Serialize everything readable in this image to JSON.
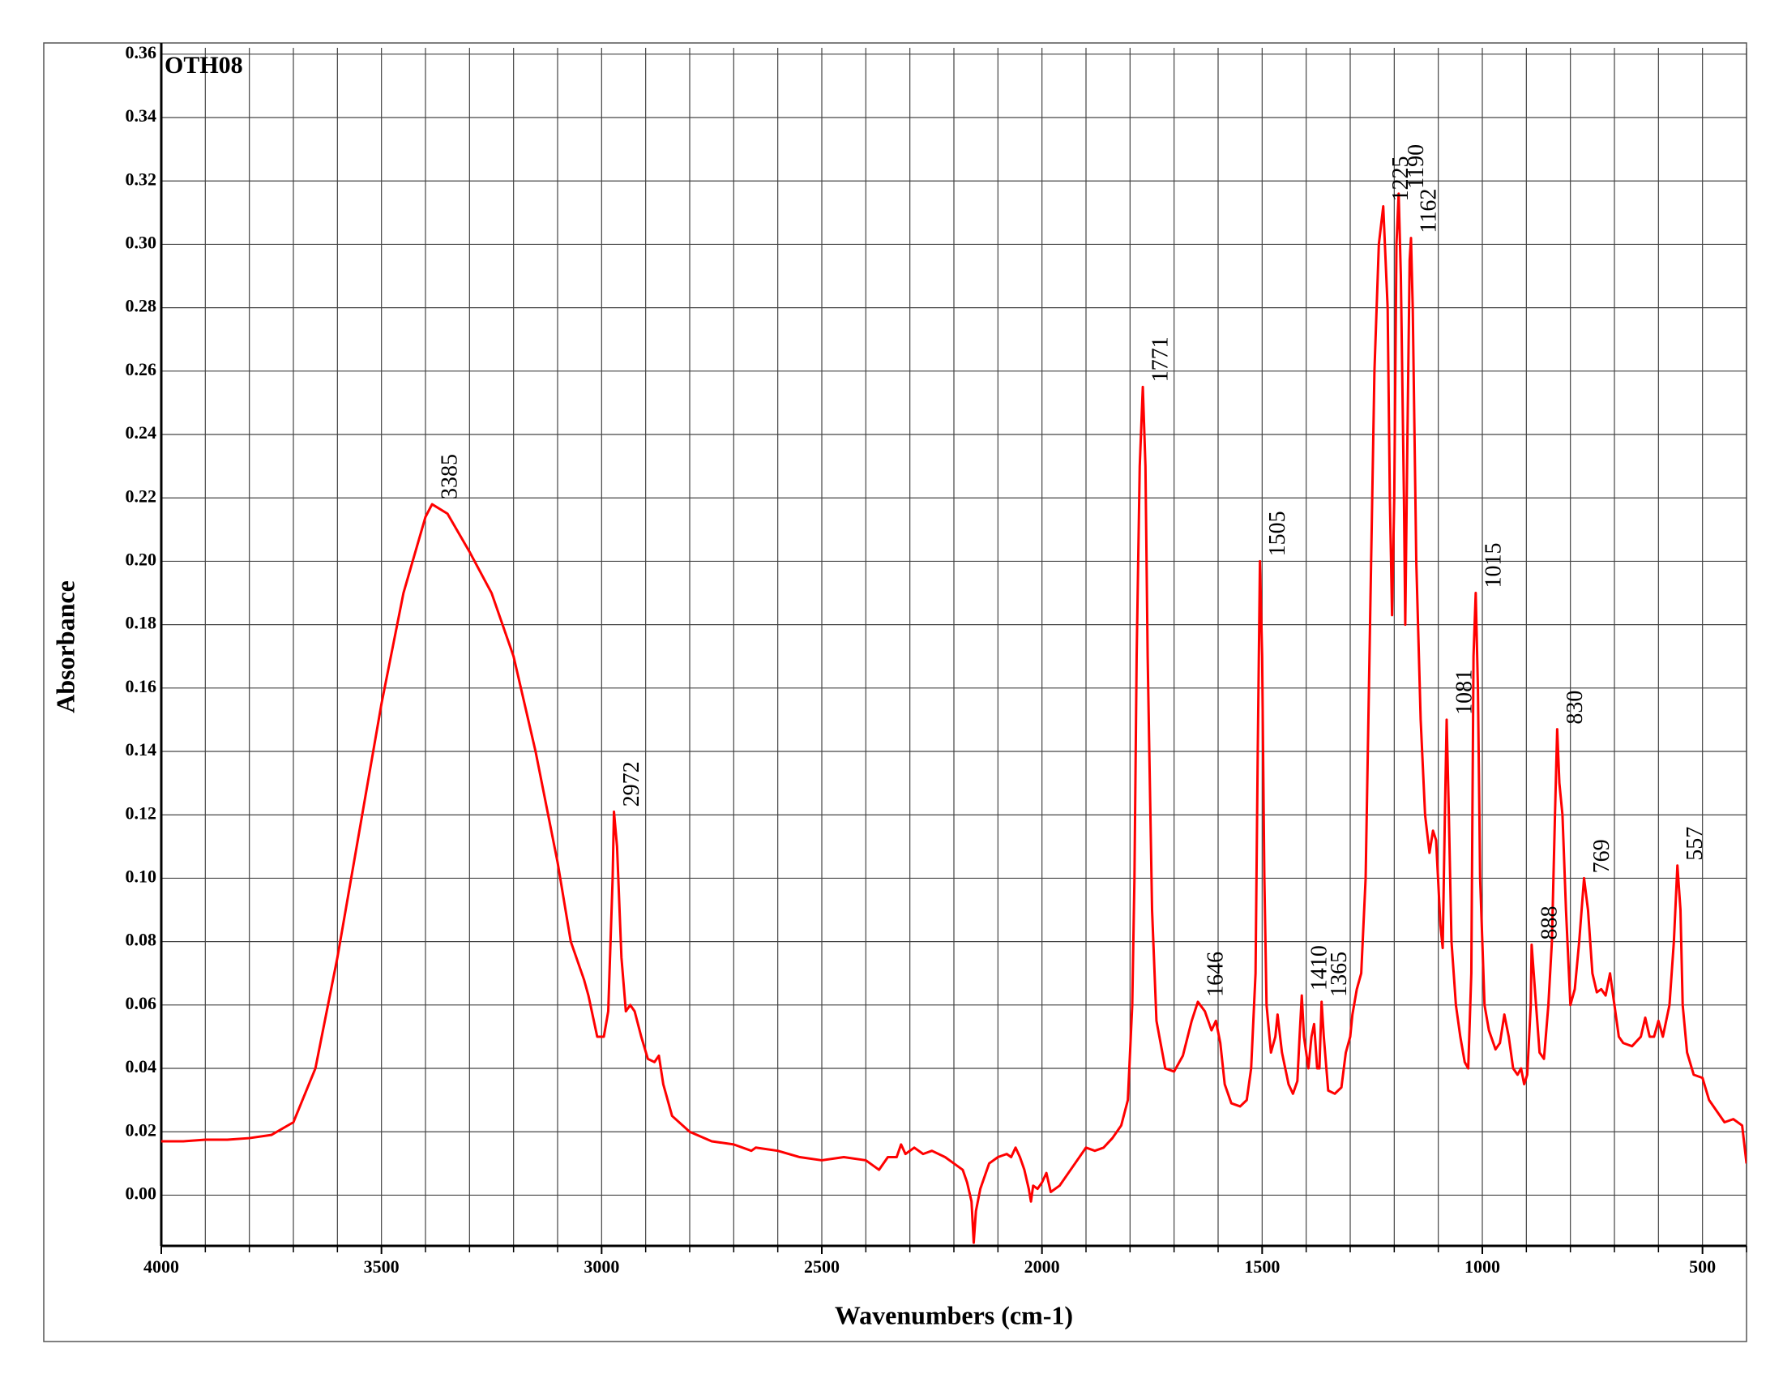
{
  "chart_data": {
    "type": "line",
    "xlabel": "Wavenumbers (cm-1)",
    "ylabel": "Absorbance",
    "xlim": [
      4000,
      400
    ],
    "ylim": [
      -0.016,
      0.362
    ],
    "xticks": [
      4000,
      3500,
      3000,
      2500,
      2000,
      1500,
      1000,
      500
    ],
    "xgrid_step": 100,
    "yticks": [
      {
        "value": 0,
        "label": "0.00"
      },
      0.02,
      0.04,
      0.06,
      0.08,
      {
        "value": 0.1,
        "label": "0.10"
      },
      0.12,
      0.14,
      0.16,
      0.18,
      {
        "value": 0.2,
        "label": "0.20"
      },
      0.22,
      0.24,
      0.26,
      0.28,
      {
        "value": 0.3,
        "label": "0.30"
      },
      0.32,
      0.34,
      0.36
    ],
    "grid": true,
    "legend": "top-left",
    "x": [
      4000,
      3950,
      3900,
      3850,
      3800,
      3750,
      3700,
      3650,
      3600,
      3550,
      3500,
      3450,
      3400,
      3385,
      3350,
      3300,
      3250,
      3200,
      3150,
      3100,
      3070,
      3040,
      3030,
      3010,
      2995,
      2985,
      2975,
      2972,
      2965,
      2955,
      2945,
      2935,
      2925,
      2910,
      2895,
      2880,
      2870,
      2860,
      2840,
      2800,
      2750,
      2700,
      2660,
      2650,
      2600,
      2550,
      2500,
      2450,
      2400,
      2370,
      2350,
      2330,
      2320,
      2310,
      2290,
      2270,
      2250,
      2220,
      2200,
      2180,
      2170,
      2160,
      2155,
      2150,
      2140,
      2120,
      2100,
      2080,
      2070,
      2060,
      2050,
      2040,
      2030,
      2025,
      2020,
      2010,
      2000,
      1990,
      1980,
      1960,
      1940,
      1920,
      1900,
      1880,
      1860,
      1840,
      1820,
      1805,
      1795,
      1790,
      1785,
      1778,
      1771,
      1765,
      1760,
      1750,
      1740,
      1720,
      1700,
      1680,
      1660,
      1646,
      1630,
      1615,
      1605,
      1595,
      1585,
      1570,
      1550,
      1535,
      1525,
      1515,
      1510,
      1505,
      1500,
      1495,
      1490,
      1480,
      1470,
      1465,
      1455,
      1440,
      1430,
      1420,
      1415,
      1410,
      1405,
      1395,
      1388,
      1382,
      1375,
      1370,
      1365,
      1360,
      1350,
      1335,
      1320,
      1310,
      1300,
      1295,
      1285,
      1275,
      1265,
      1255,
      1245,
      1235,
      1225,
      1215,
      1210,
      1205,
      1200,
      1195,
      1190,
      1185,
      1178,
      1175,
      1170,
      1165,
      1162,
      1158,
      1150,
      1140,
      1130,
      1120,
      1112,
      1105,
      1095,
      1090,
      1085,
      1081,
      1076,
      1070,
      1060,
      1050,
      1040,
      1032,
      1025,
      1020,
      1015,
      1010,
      1005,
      995,
      985,
      970,
      960,
      950,
      940,
      930,
      920,
      912,
      905,
      898,
      890,
      888,
      878,
      870,
      860,
      850,
      842,
      835,
      830,
      825,
      818,
      810,
      800,
      790,
      780,
      769,
      760,
      750,
      740,
      730,
      720,
      710,
      700,
      690,
      680,
      660,
      640,
      630,
      620,
      610,
      600,
      590,
      575,
      565,
      557,
      550,
      545,
      535,
      520,
      500,
      485,
      470,
      450,
      430,
      410,
      405,
      400
    ],
    "series": [
      {
        "name": "OTH08",
        "color": "#ff0000",
        "values": [
          0.017,
          0.017,
          0.0175,
          0.0175,
          0.018,
          0.019,
          0.023,
          0.04,
          0.075,
          0.115,
          0.155,
          0.19,
          0.214,
          0.218,
          0.215,
          0.203,
          0.19,
          0.17,
          0.14,
          0.105,
          0.08,
          0.068,
          0.063,
          0.05,
          0.05,
          0.058,
          0.1,
          0.121,
          0.11,
          0.075,
          0.058,
          0.06,
          0.058,
          0.05,
          0.043,
          0.042,
          0.044,
          0.035,
          0.025,
          0.02,
          0.017,
          0.016,
          0.014,
          0.015,
          0.014,
          0.012,
          0.011,
          0.012,
          0.011,
          0.008,
          0.012,
          0.012,
          0.016,
          0.013,
          0.015,
          0.013,
          0.014,
          0.012,
          0.01,
          0.008,
          0.004,
          -0.002,
          -0.015,
          -0.005,
          0.002,
          0.01,
          0.012,
          0.013,
          0.012,
          0.015,
          0.012,
          0.008,
          0.002,
          -0.002,
          0.003,
          0.002,
          0.004,
          0.007,
          0.001,
          0.003,
          0.007,
          0.011,
          0.015,
          0.014,
          0.015,
          0.018,
          0.022,
          0.03,
          0.06,
          0.1,
          0.17,
          0.23,
          0.255,
          0.23,
          0.17,
          0.09,
          0.055,
          0.04,
          0.039,
          0.044,
          0.055,
          0.061,
          0.058,
          0.052,
          0.055,
          0.048,
          0.035,
          0.029,
          0.028,
          0.03,
          0.04,
          0.07,
          0.14,
          0.2,
          0.17,
          0.1,
          0.06,
          0.045,
          0.05,
          0.057,
          0.045,
          0.035,
          0.032,
          0.036,
          0.05,
          0.063,
          0.05,
          0.04,
          0.05,
          0.054,
          0.04,
          0.04,
          0.061,
          0.05,
          0.033,
          0.032,
          0.034,
          0.045,
          0.05,
          0.057,
          0.065,
          0.07,
          0.1,
          0.18,
          0.26,
          0.3,
          0.312,
          0.28,
          0.22,
          0.183,
          0.22,
          0.3,
          0.316,
          0.29,
          0.22,
          0.18,
          0.24,
          0.295,
          0.302,
          0.28,
          0.2,
          0.15,
          0.12,
          0.108,
          0.115,
          0.112,
          0.085,
          0.078,
          0.12,
          0.15,
          0.12,
          0.08,
          0.06,
          0.05,
          0.042,
          0.04,
          0.07,
          0.17,
          0.19,
          0.16,
          0.1,
          0.06,
          0.052,
          0.046,
          0.048,
          0.057,
          0.05,
          0.04,
          0.038,
          0.04,
          0.035,
          0.038,
          0.06,
          0.079,
          0.06,
          0.045,
          0.043,
          0.06,
          0.08,
          0.12,
          0.147,
          0.13,
          0.12,
          0.09,
          0.06,
          0.065,
          0.08,
          0.1,
          0.09,
          0.07,
          0.064,
          0.065,
          0.063,
          0.07,
          0.06,
          0.05,
          0.048,
          0.047,
          0.05,
          0.056,
          0.05,
          0.05,
          0.055,
          0.05,
          0.06,
          0.08,
          0.104,
          0.09,
          0.06,
          0.045,
          0.038,
          0.037,
          0.03,
          0.027,
          0.023,
          0.024,
          0.022,
          0.016,
          0.01
        ]
      }
    ],
    "annotations": [
      {
        "text": "3385",
        "x": 3385,
        "y": 0.218
      },
      {
        "text": "2972",
        "x": 2972,
        "y": 0.121
      },
      {
        "text": "1771",
        "x": 1771,
        "y": 0.255
      },
      {
        "text": "1646",
        "x": 1646,
        "y": 0.061
      },
      {
        "text": "1505",
        "x": 1505,
        "y": 0.2
      },
      {
        "text": "1410",
        "x": 1410,
        "y": 0.063
      },
      {
        "text": "1365",
        "x": 1365,
        "y": 0.061
      },
      {
        "text": "1225",
        "x": 1225,
        "y": 0.312
      },
      {
        "text": "1190",
        "x": 1190,
        "y": 0.316
      },
      {
        "text": "1162",
        "x": 1162,
        "y": 0.302
      },
      {
        "text": "1081",
        "x": 1081,
        "y": 0.15
      },
      {
        "text": "1015",
        "x": 1015,
        "y": 0.19
      },
      {
        "text": "888",
        "x": 888,
        "y": 0.079
      },
      {
        "text": "830",
        "x": 830,
        "y": 0.147
      },
      {
        "text": "769",
        "x": 769,
        "y": 0.1
      },
      {
        "text": "557",
        "x": 557,
        "y": 0.104
      }
    ]
  }
}
